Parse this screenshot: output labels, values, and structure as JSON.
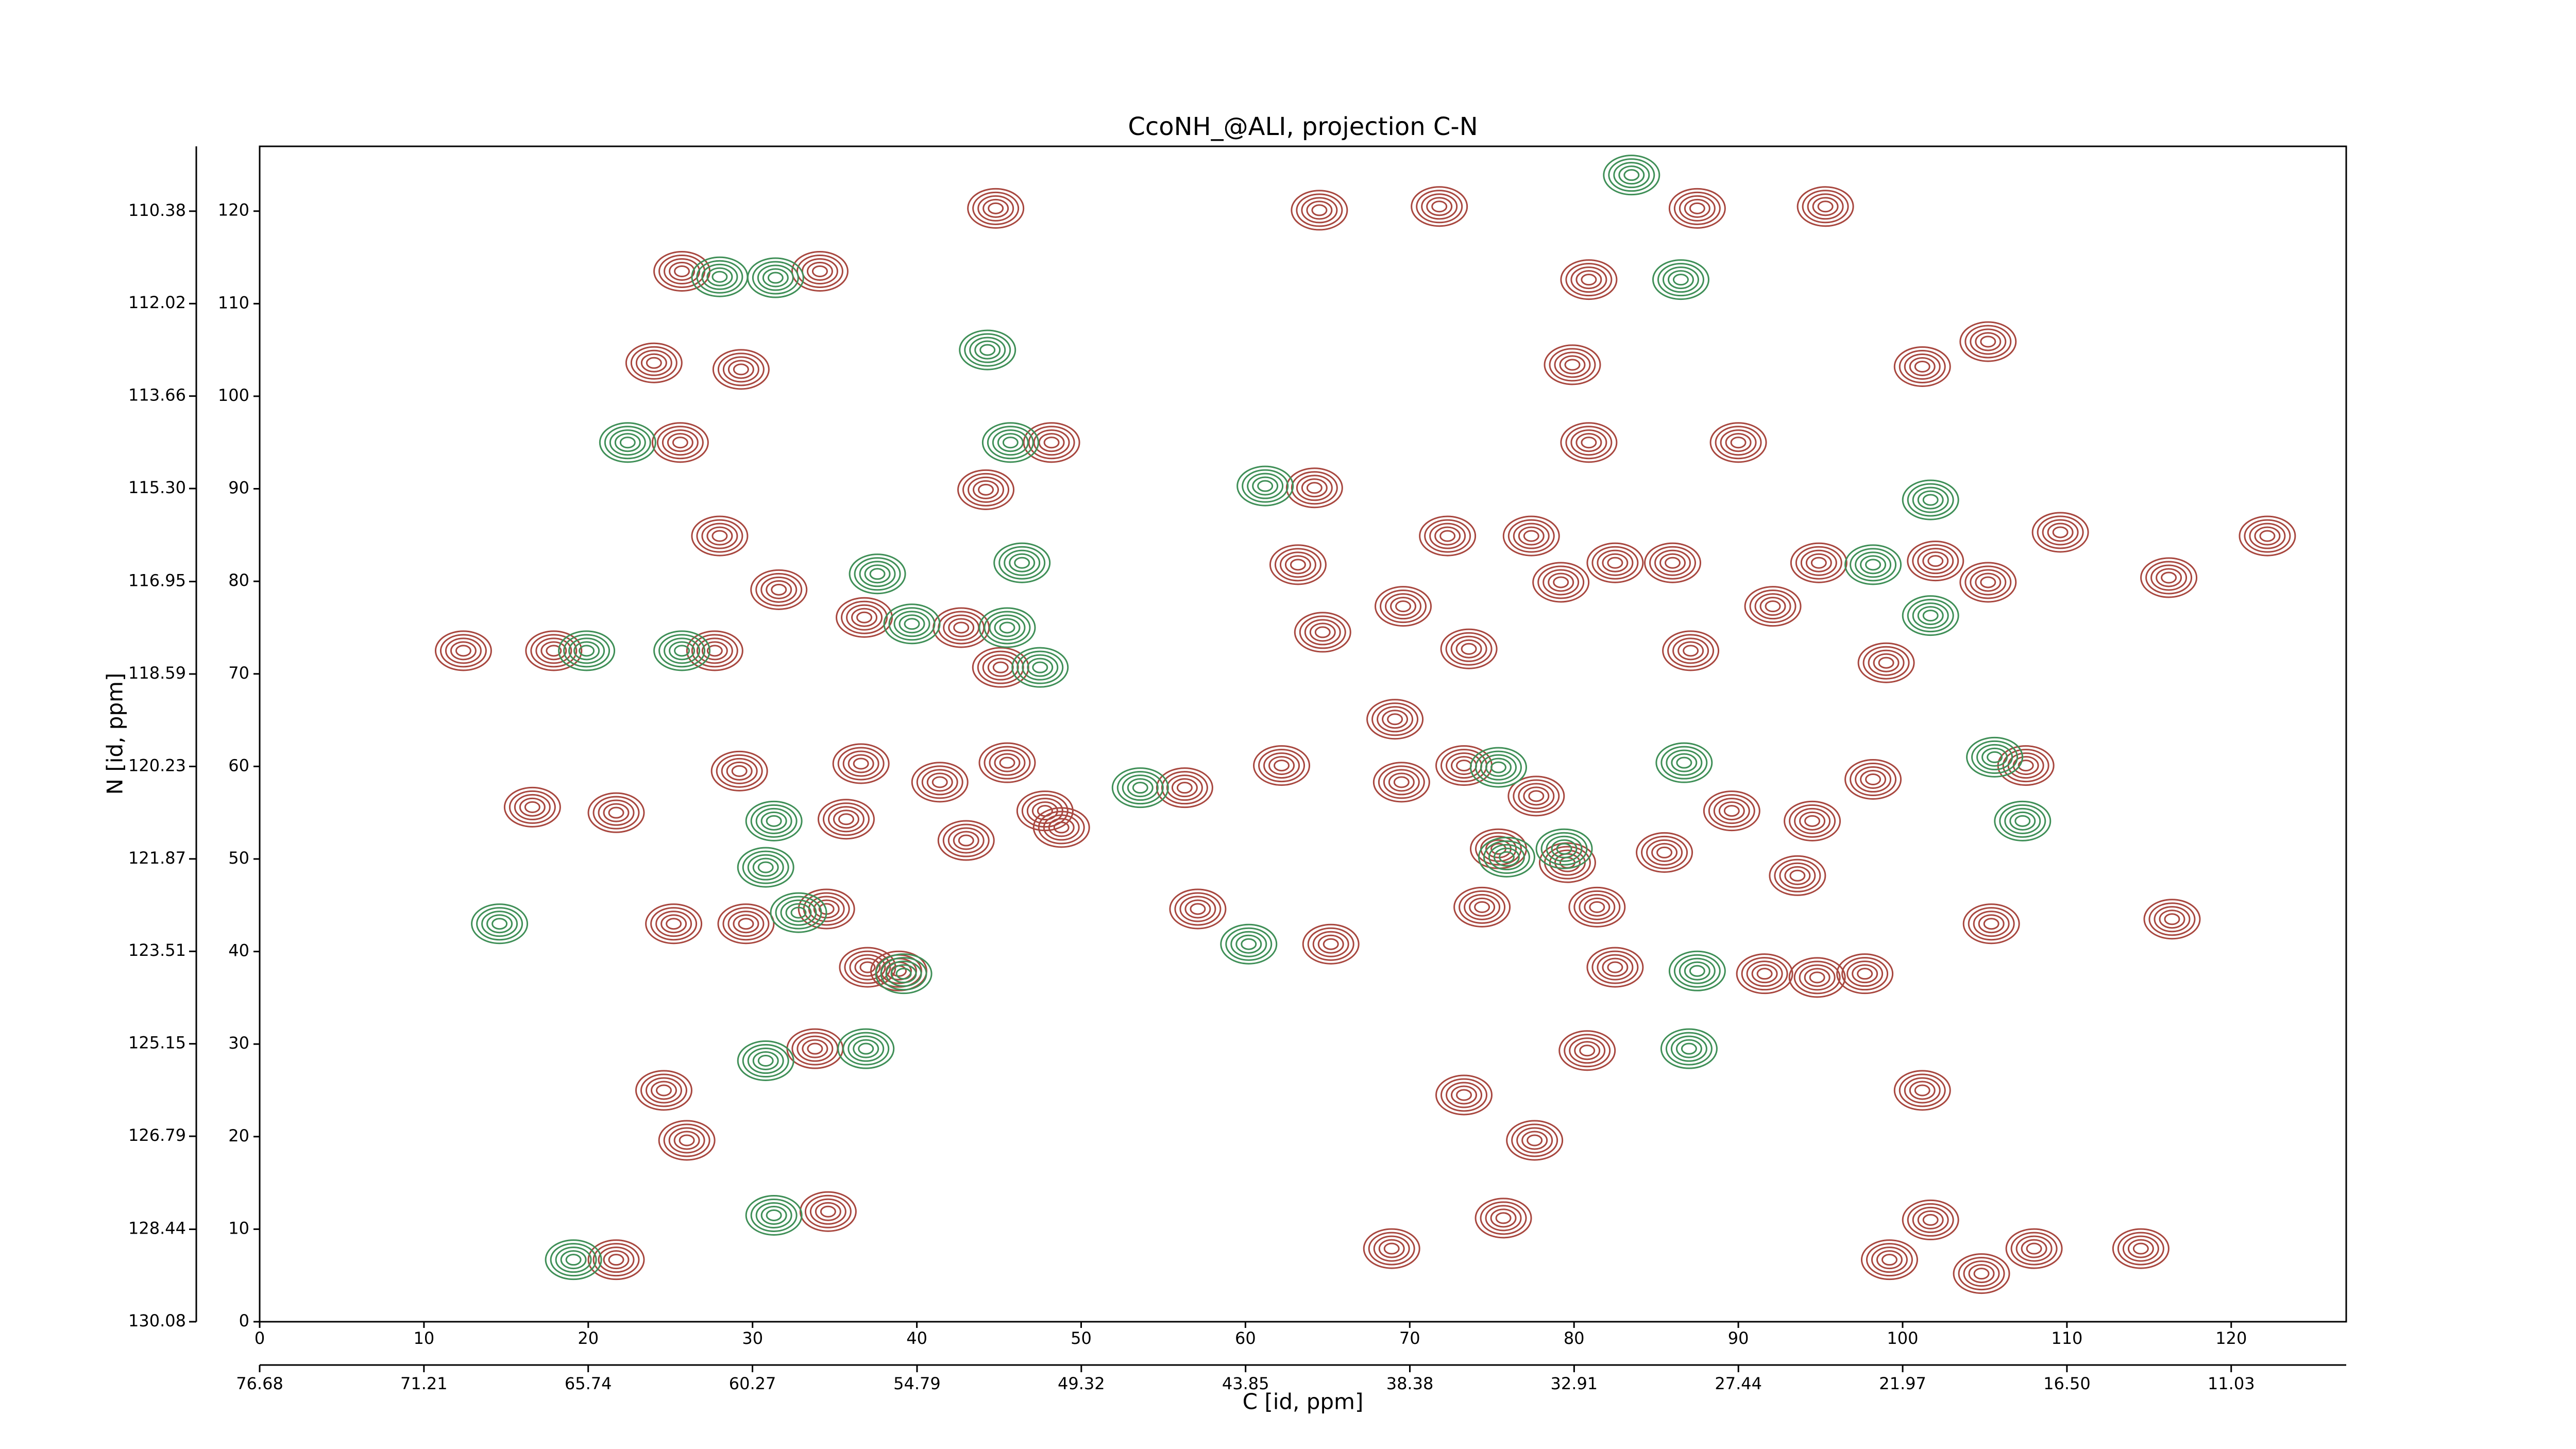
{
  "chart_data": {
    "type": "contour",
    "title": "CcoNH_@ALI, projection C-N",
    "xlabel": "C [id, ppm]",
    "ylabel": "N [id, ppm]",
    "xlim": [
      0,
      127
    ],
    "ylim": [
      0,
      127
    ],
    "xticks": [
      0,
      10,
      20,
      30,
      40,
      50,
      60,
      70,
      80,
      90,
      100,
      110,
      120
    ],
    "yticks": [
      0,
      10,
      20,
      30,
      40,
      50,
      60,
      70,
      80,
      90,
      100,
      110,
      120
    ],
    "x2lim": [
      76.68,
      7.2
    ],
    "x2ticks": [
      76.68,
      71.21,
      65.74,
      60.27,
      54.79,
      49.32,
      43.85,
      38.38,
      32.91,
      27.44,
      21.97,
      {
        "value": 16.5,
        "label": "16.50"
      },
      11.03
    ],
    "y2lim": [
      130.08,
      109.23
    ],
    "y2ticks": [
      130.08,
      128.44,
      126.79,
      125.15,
      123.51,
      121.87,
      120.23,
      118.59,
      116.95,
      {
        "value": 115.3,
        "label": "115.30"
      },
      113.66,
      112.02,
      110.38
    ],
    "series": [
      {
        "color": "#a8473f",
        "x": [
          25.7,
          34.1,
          24.0,
          29.3,
          25.6,
          48.2,
          44.2,
          28.0,
          31.6,
          36.8,
          42.7,
          27.7,
          45.1,
          16.6,
          21.7,
          17.9,
          12.4,
          36.6,
          41.4,
          45.5,
          47.8,
          35.7,
          34.5,
          37.0,
          33.8,
          24.6,
          26.0,
          34.6,
          21.7,
          56.3,
          57.1,
          62.2,
          65.2,
          69.1,
          73.3,
          69.5,
          64.2,
          63.2,
          64.7,
          69.6,
          71.8,
          64.5,
          80.9,
          79.9,
          80.9,
          87.5,
          90.0,
          95.3,
          101.2,
          105.2,
          94.9,
          92.1,
          87.1,
          86.0,
          99.0,
          102.0,
          105.2,
          109.6,
          116.2,
          122.2,
          107.5,
          94.5,
          93.6,
          89.6,
          85.5,
          82.5,
          74.4,
          80.8,
          73.3,
          77.6,
          75.7,
          68.9,
          101.2,
          101.7,
          99.2,
          108.0,
          114.5,
          105.4,
          116.4,
          91.6,
          97.7,
          94.8,
          79.6,
          81.4,
          75.4,
          77.7,
          98.2,
          29.6,
          25.2,
          29.2,
          72.3,
          77.4,
          82.5,
          79.2,
          73.6,
          44.8,
          104.8,
          38.9,
          43.0,
          48.8
        ],
        "y": [
          113.5,
          113.5,
          103.6,
          102.9,
          95.0,
          95.0,
          89.9,
          84.9,
          79.1,
          76.1,
          75.0,
          72.5,
          70.7,
          55.6,
          55.0,
          72.5,
          72.5,
          60.3,
          58.3,
          60.4,
          55.2,
          54.3,
          44.6,
          38.3,
          29.5,
          25.0,
          19.6,
          11.9,
          6.7,
          57.7,
          44.6,
          60.1,
          40.8,
          65.1,
          60.1,
          58.3,
          90.1,
          81.8,
          74.5,
          77.3,
          120.5,
          120.1,
          112.6,
          103.4,
          95.0,
          120.3,
          95.0,
          120.5,
          103.2,
          105.9,
          82.0,
          77.3,
          72.5,
          82.0,
          71.2,
          82.2,
          79.9,
          85.3,
          80.4,
          84.9,
          60.1,
          54.1,
          48.2,
          55.2,
          50.7,
          38.3,
          44.8,
          29.3,
          24.5,
          19.6,
          11.2,
          7.9,
          25.0,
          11.0,
          6.7,
          7.9,
          7.9,
          43.0,
          43.5,
          37.6,
          37.6,
          37.2,
          49.6,
          44.8,
          51.1,
          56.8,
          58.6,
          43.0,
          43.0,
          59.5,
          84.9,
          84.9,
          82.0,
          79.9,
          72.7,
          120.3,
          5.2,
          37.9,
          52.0,
          53.4
        ]
      },
      {
        "color": "#3f8f57",
        "x": [
          28.0,
          31.4,
          22.4,
          45.7,
          46.4,
          37.6,
          39.7,
          45.5,
          47.5,
          19.9,
          25.7,
          14.6,
          32.8,
          31.3,
          30.8,
          39.2,
          30.8,
          36.9,
          31.3,
          19.1,
          53.6,
          60.2,
          75.4,
          86.5,
          98.2,
          101.7,
          86.7,
          107.3,
          105.6,
          87.5,
          87.0,
          75.9,
          79.4,
          83.5,
          44.3,
          61.2,
          101.7
        ],
        "y": [
          112.9,
          112.8,
          95.0,
          95.0,
          82.0,
          80.8,
          75.4,
          75.0,
          70.7,
          72.5,
          72.5,
          43.0,
          44.2,
          54.1,
          49.1,
          37.6,
          28.2,
          29.5,
          11.5,
          6.7,
          57.7,
          40.8,
          59.9,
          112.6,
          81.8,
          76.3,
          60.4,
          54.1,
          61.0,
          37.9,
          29.5,
          50.2,
          51.1,
          123.9,
          105.0,
          90.3,
          88.8
        ]
      }
    ]
  }
}
